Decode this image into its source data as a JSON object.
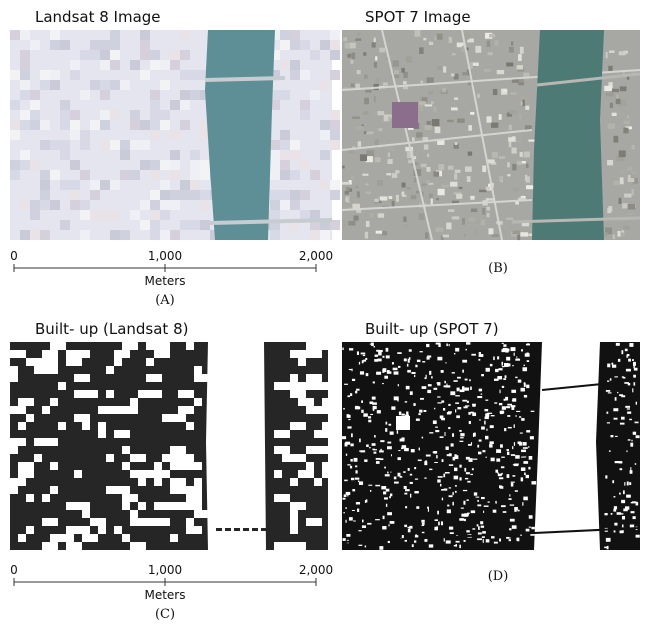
{
  "panels": [
    {
      "title": "Landsat 8 Image",
      "label": "(A)"
    },
    {
      "title": "SPOT 7 Image",
      "label": "(B)"
    },
    {
      "title": "Built- up (Landsat 8)",
      "label": "(C)"
    },
    {
      "title": "Built- up (SPOT 7)",
      "label": "(D)"
    }
  ],
  "scale_bars": [
    {
      "ticks": [
        "0",
        "1,000",
        "2,000"
      ],
      "unit": "Meters"
    },
    {
      "ticks": [
        "0",
        "1,000",
        "2,000"
      ],
      "unit": "Meters"
    }
  ]
}
